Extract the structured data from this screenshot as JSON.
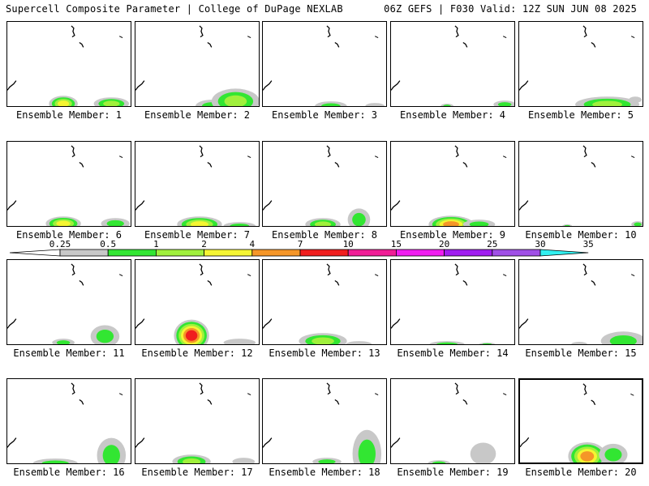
{
  "header": {
    "left_title": "Supercell Composite Parameter | College of DuPage NEXLAB",
    "right_title": "06Z GEFS | F030 Valid: 12Z SUN JUN 08 2025"
  },
  "colorbar": {
    "ticks": [
      "0.25",
      "0.5",
      "1",
      "2",
      "4",
      "7",
      "10",
      "15",
      "20",
      "25",
      "30",
      "35"
    ],
    "colors": [
      "#c8c8c8",
      "#32e632",
      "#a0f03c",
      "#f5f532",
      "#f59628",
      "#f01e1e",
      "#f01e96",
      "#f01ef0",
      "#a01ef0",
      "#a050e6",
      "#32f0f0"
    ]
  },
  "members": [
    {
      "label": "Ensemble Member: 1"
    },
    {
      "label": "Ensemble Member: 2"
    },
    {
      "label": "Ensemble Member: 3"
    },
    {
      "label": "Ensemble Member: 4"
    },
    {
      "label": "Ensemble Member: 5"
    },
    {
      "label": "Ensemble Member: 6"
    },
    {
      "label": "Ensemble Member: 7"
    },
    {
      "label": "Ensemble Member: 8"
    },
    {
      "label": "Ensemble Member: 9"
    },
    {
      "label": "Ensemble Member: 10"
    },
    {
      "label": "Ensemble Member: 11"
    },
    {
      "label": "Ensemble Member: 12"
    },
    {
      "label": "Ensemble Member: 13"
    },
    {
      "label": "Ensemble Member: 14"
    },
    {
      "label": "Ensemble Member: 15"
    },
    {
      "label": "Ensemble Member: 16"
    },
    {
      "label": "Ensemble Member: 17"
    },
    {
      "label": "Ensemble Member: 18"
    },
    {
      "label": "Ensemble Member: 19"
    },
    {
      "label": "Ensemble Member: 20",
      "selected": true
    }
  ]
}
